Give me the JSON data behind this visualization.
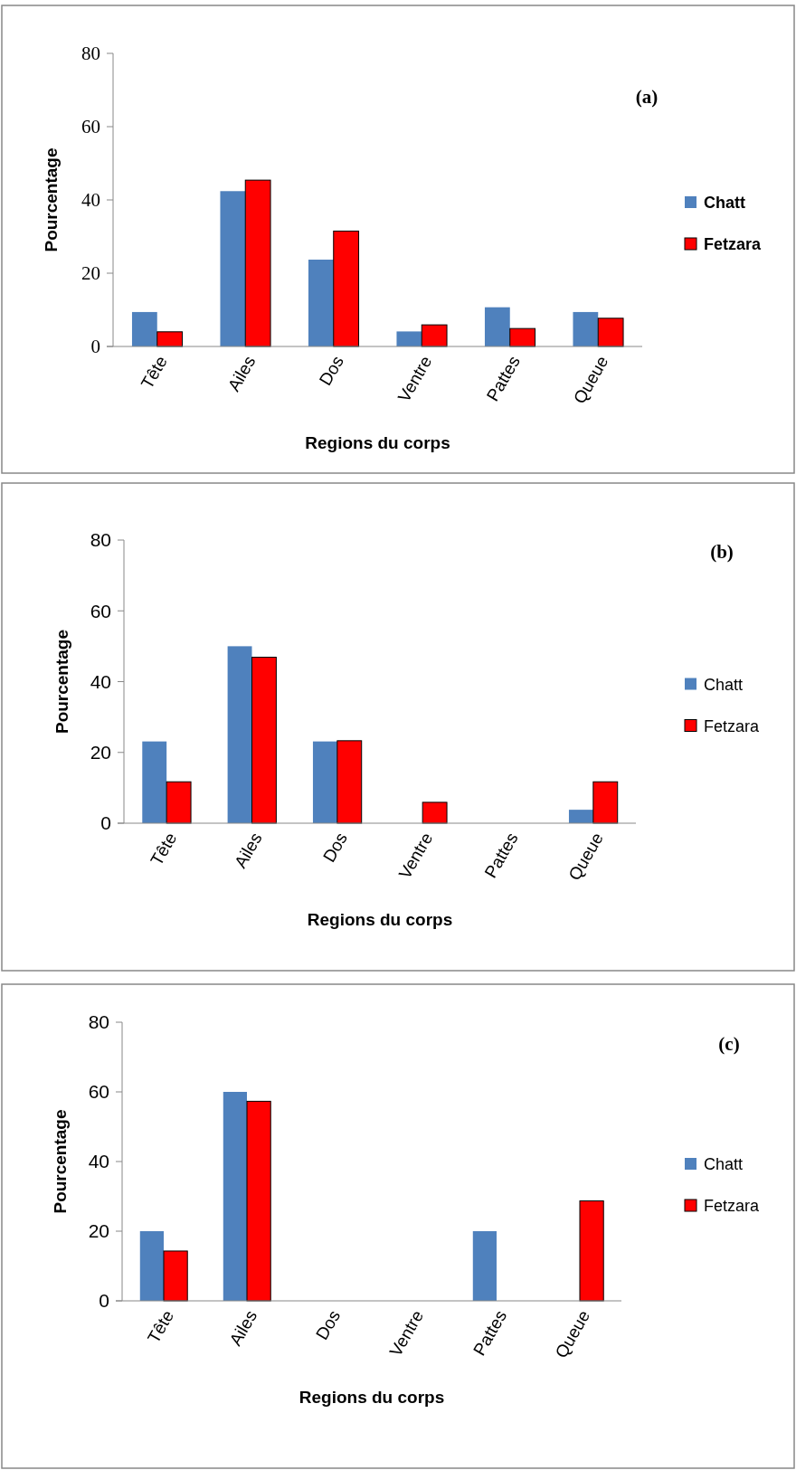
{
  "chart_data": [
    {
      "type": "bar",
      "annotations": [
        "(a)"
      ],
      "xlabel": "Regions du corps",
      "ylabel": "Pourcentage",
      "categories": [
        "Tête",
        "Ailes",
        "Dos",
        "Ventre",
        "Pattes",
        "Queue"
      ],
      "series": [
        {
          "name": "Chatt",
          "color": "#4f81bd",
          "values": [
            9.4,
            42.4,
            23.7,
            4.1,
            10.7,
            9.4
          ]
        },
        {
          "name": "Fetzara",
          "color": "#ff0000",
          "values": [
            4.0,
            45.4,
            31.5,
            5.9,
            4.9,
            7.7
          ]
        }
      ],
      "ylim": [
        0,
        80
      ],
      "yticks": [
        0,
        20,
        40,
        60,
        80
      ],
      "legend": "right"
    },
    {
      "type": "bar",
      "annotations": [
        "(b)"
      ],
      "xlabel": "Regions du corps",
      "ylabel": "Pourcentage",
      "categories": [
        "Tête",
        "Ailes",
        "Dos",
        "Ventre",
        "Pattes",
        "Queue"
      ],
      "series": [
        {
          "name": "Chatt",
          "color": "#4f81bd",
          "values": [
            23.1,
            50,
            23.1,
            0,
            0,
            3.8
          ]
        },
        {
          "name": "Fetzara",
          "color": "#ff0000",
          "values": [
            11.7,
            46.9,
            23.3,
            5.9,
            0,
            11.7
          ]
        }
      ],
      "ylim": [
        0,
        80
      ],
      "yticks": [
        0,
        20,
        40,
        60,
        80
      ],
      "legend": "right"
    },
    {
      "type": "bar",
      "annotations": [
        "(c)"
      ],
      "xlabel": "Regions du corps",
      "ylabel": "Pourcentage",
      "categories": [
        "Tête",
        "Ailes",
        "Dos",
        "Ventre",
        "Pattes",
        "Queue"
      ],
      "series": [
        {
          "name": "Chatt",
          "color": "#4f81bd",
          "values": [
            20,
            60,
            0,
            0,
            20,
            0
          ]
        },
        {
          "name": "Fetzara",
          "color": "#ff0000",
          "values": [
            14.3,
            57.3,
            0,
            0,
            0,
            28.7
          ]
        }
      ],
      "ylim": [
        0,
        80
      ],
      "yticks": [
        0,
        20,
        40,
        60,
        80
      ],
      "legend": "right"
    }
  ]
}
